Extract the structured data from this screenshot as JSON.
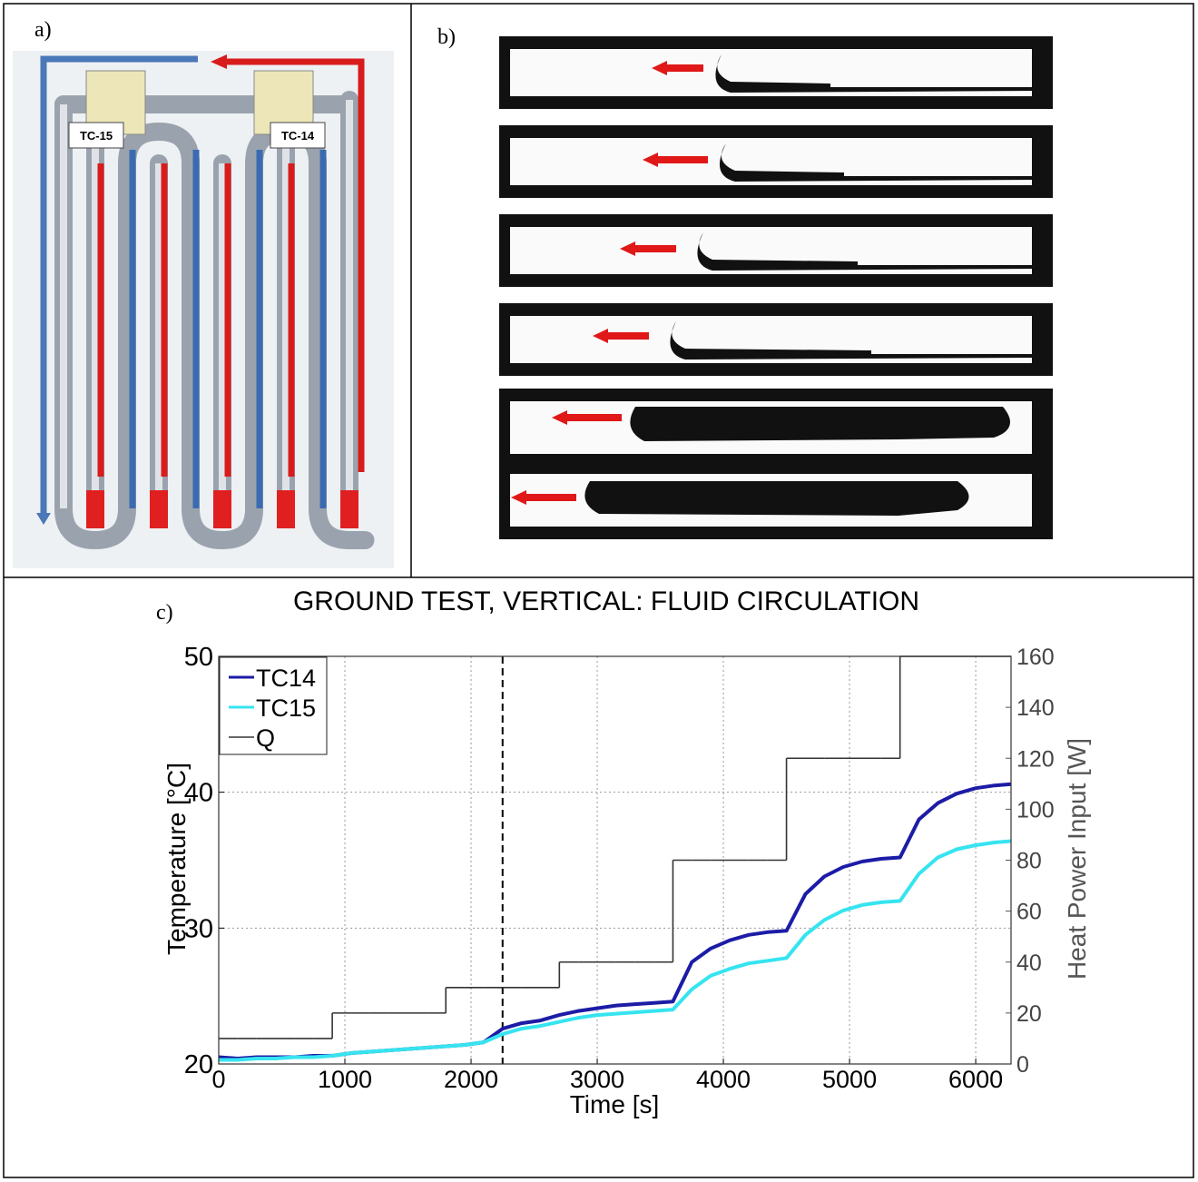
{
  "panels": {
    "a": {
      "label": "a)",
      "tags": [
        "TC-15",
        "TC-14"
      ]
    },
    "b": {
      "label": "b)"
    },
    "c": {
      "label": "c)"
    }
  },
  "chart_data": {
    "type": "line",
    "title": "GROUND TEST, VERTICAL: FLUID CIRCULATION",
    "xlabel": "Time [s]",
    "ylabel": "Temperature [°C]",
    "y2label": "Heat Power Input [W]",
    "x": [
      0,
      150,
      300,
      450,
      600,
      750,
      900,
      1050,
      1200,
      1350,
      1500,
      1650,
      1800,
      1950,
      2100,
      2250,
      2400,
      2550,
      2700,
      2850,
      3000,
      3150,
      3300,
      3450,
      3600,
      3750,
      3900,
      4050,
      4200,
      4350,
      4500,
      4650,
      4800,
      4950,
      5100,
      5250,
      5400,
      5550,
      5700,
      5850,
      6000,
      6150,
      6280
    ],
    "series": [
      {
        "name": "TC14",
        "color": "#1c1ca6",
        "values": [
          20.5,
          20.4,
          20.5,
          20.5,
          20.5,
          20.6,
          20.6,
          20.8,
          20.9,
          21.0,
          21.1,
          21.2,
          21.3,
          21.4,
          21.6,
          22.6,
          23.0,
          23.2,
          23.6,
          23.9,
          24.1,
          24.3,
          24.4,
          24.5,
          24.6,
          27.5,
          28.5,
          29.1,
          29.5,
          29.7,
          29.8,
          32.5,
          33.8,
          34.5,
          34.9,
          35.1,
          35.2,
          38.0,
          39.2,
          39.9,
          40.3,
          40.5,
          40.6
        ]
      },
      {
        "name": "TC15",
        "color": "#36e4f0",
        "values": [
          20.3,
          20.3,
          20.4,
          20.4,
          20.5,
          20.5,
          20.6,
          20.8,
          20.9,
          21.0,
          21.1,
          21.2,
          21.3,
          21.4,
          21.6,
          22.2,
          22.6,
          22.8,
          23.1,
          23.4,
          23.6,
          23.7,
          23.8,
          23.9,
          24.0,
          25.5,
          26.5,
          27.0,
          27.4,
          27.6,
          27.8,
          29.5,
          30.6,
          31.3,
          31.7,
          31.9,
          32.0,
          34.0,
          35.2,
          35.8,
          36.1,
          36.3,
          36.4
        ]
      },
      {
        "name": "Q",
        "color": "#333333",
        "axis": "y2",
        "step": true,
        "values": [
          10,
          10,
          10,
          10,
          10,
          10,
          20,
          20,
          20,
          20,
          20,
          20,
          30,
          30,
          30,
          30,
          30,
          30,
          40,
          40,
          40,
          40,
          40,
          40,
          80,
          80,
          80,
          80,
          80,
          80,
          120,
          120,
          120,
          120,
          120,
          120,
          160,
          160,
          160,
          160,
          160,
          160,
          160
        ]
      }
    ],
    "xlim": [
      0,
      6280
    ],
    "xticks": [
      0,
      1000,
      2000,
      3000,
      4000,
      5000,
      6000
    ],
    "ylim": [
      20,
      50
    ],
    "yticks": [
      20,
      30,
      40,
      50
    ],
    "y2lim": [
      0,
      160
    ],
    "y2ticks": [
      0,
      20,
      40,
      60,
      80,
      100,
      120,
      140,
      160
    ],
    "vlines": [
      2250
    ],
    "grid": true,
    "legend": "upper left"
  }
}
